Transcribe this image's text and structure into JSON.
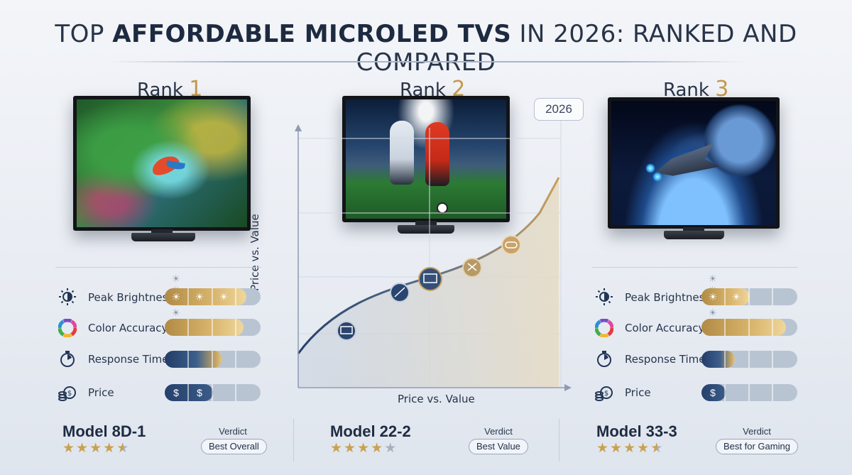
{
  "title": {
    "prefix": "TOP ",
    "emphasis": "AFFORDABLE MICROLED TVS",
    "suffix": " IN 2026: RANKED AND COMPARED"
  },
  "year_badge": "2026",
  "ranks": [
    {
      "label": "Rank",
      "number": "1"
    },
    {
      "label": "Rank",
      "number": "2"
    },
    {
      "label": "Rank",
      "number": "3"
    }
  ],
  "metrics": {
    "labels": {
      "brightness": "Peak Brightness",
      "color": "Color Accuracy",
      "response": "Response Time",
      "price": "Price"
    },
    "price_glyph": "$"
  },
  "panels": [
    {
      "brightness": 0.85,
      "color": 0.82,
      "response": 0.6,
      "price_level": 2
    },
    {
      "brightness": 0.5,
      "color": 0.88,
      "response": 0.35,
      "price_level": 1
    }
  ],
  "center_chart": {
    "xlabel": "Price vs. Value",
    "ylabel": "Price vs. Value"
  },
  "models": [
    {
      "name": "Model 8D-1",
      "rating": 4.5,
      "verdict_label": "Verdict",
      "verdict": "Best Overall"
    },
    {
      "name": "Model 22-2",
      "rating": 4,
      "verdict_label": "Verdict",
      "verdict": "Best Value"
    },
    {
      "name": "Model 33-3",
      "rating": 4.5,
      "verdict_label": "Verdict",
      "verdict": "Best for Gaming"
    }
  ],
  "colors": {
    "gold": "#c49a4b",
    "navy": "#25406b",
    "text": "#1f2d44"
  }
}
